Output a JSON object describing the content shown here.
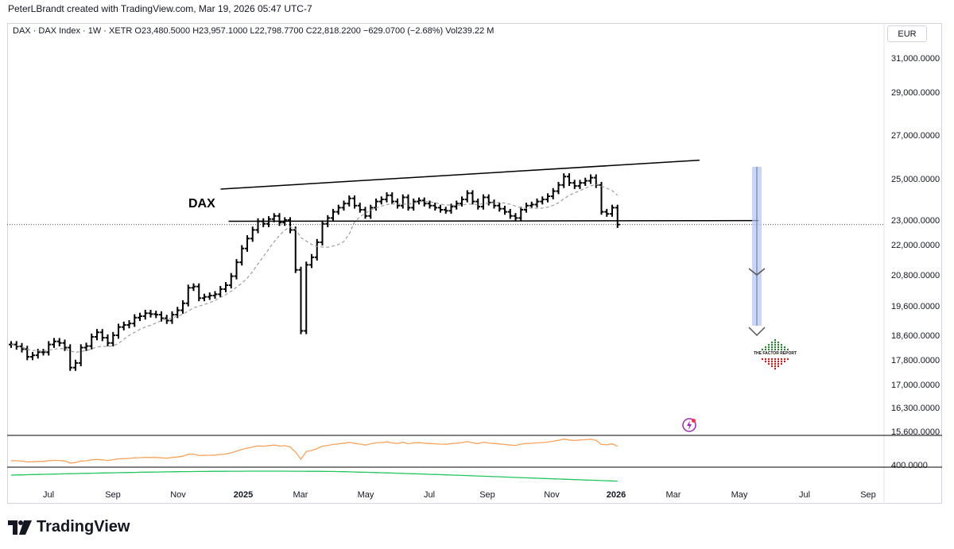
{
  "credit": "PeterLBrandt created with TradingView.com, Mar 19, 2026 05:47 UTC-7",
  "legend": "DAX · DAX Index · 1W · XETR  O23,480.5000  H23,957.1000  L22,798.7700  C22,818.2200  −629.0700 (−2.68%)  Vol239.22 M",
  "currency": "EUR",
  "brand": "TradingView",
  "chart_data": {
    "type": "line",
    "symbol_label": "DAX",
    "interval": "1W",
    "price_axis_ticks": [
      "31,000.0000",
      "29,000.0000",
      "27,000.0000",
      "25,000.0000",
      "23,000.0000",
      "22,000.0000",
      "20,800.0000",
      "19,600.0000",
      "18,600.0000",
      "17,800.0000",
      "17,000.0000",
      "16,300.0000",
      "15,600.0000"
    ],
    "lower_axis_tick": "400.0000",
    "x_ticks": [
      "Jul",
      "Sep",
      "Nov",
      "2025",
      "Mar",
      "May",
      "Jul",
      "Sep",
      "Nov",
      "2026",
      "Mar",
      "May",
      "Jul",
      "Sep"
    ],
    "x_ticks_bold": [
      "2025",
      "2026"
    ],
    "last_close": 22818,
    "weekly_closes": [
      18300,
      18240,
      18150,
      17900,
      17950,
      18050,
      18050,
      18300,
      18400,
      18350,
      18200,
      17550,
      17700,
      18200,
      18250,
      18550,
      18700,
      18520,
      18350,
      18600,
      18880,
      18950,
      19000,
      19200,
      19250,
      19350,
      19320,
      19300,
      19180,
      19100,
      19300,
      19450,
      19700,
      20300,
      20350,
      19900,
      19950,
      20000,
      20050,
      20250,
      20400,
      20750,
      21300,
      21850,
      22250,
      22600,
      22950,
      22850,
      23050,
      23200,
      22900,
      23000,
      22600,
      21000,
      18750,
      21200,
      21500,
      22100,
      22850,
      23100,
      23400,
      23600,
      23800,
      24050,
      23700,
      23500,
      23200,
      23600,
      23900,
      24000,
      24200,
      23900,
      23700,
      24100,
      23600,
      23900,
      23950,
      23800,
      23700,
      23600,
      23500,
      23450,
      23650,
      23800,
      24000,
      24300,
      23900,
      23650,
      24100,
      23850,
      23700,
      23550,
      23400,
      23200,
      23100,
      23500,
      23700,
      23750,
      23900,
      24000,
      24150,
      24400,
      24700,
      25100,
      24800,
      24650,
      24800,
      24900,
      25050,
      24700,
      23400,
      23300,
      23600,
      22818
    ],
    "annotations": {
      "channel_top": [
        {
          "week": 42,
          "price": 24500
        },
        {
          "week": 112,
          "price": 25850
        }
      ],
      "channel_bottom": [
        {
          "week": 42,
          "price": 22950
        },
        {
          "week": 123,
          "price": 22980
        }
      ],
      "target_1": 20800,
      "target_2": 18600,
      "label": "DAX"
    },
    "logo_text": "THE FACTOR REPORT"
  },
  "colors": {
    "bars": "#000000",
    "ma": "#9e9e9e",
    "arrow": "#b3c5ef",
    "orange": "#f7a35c",
    "green": "#22c55e",
    "flash": "#9c27b0"
  }
}
